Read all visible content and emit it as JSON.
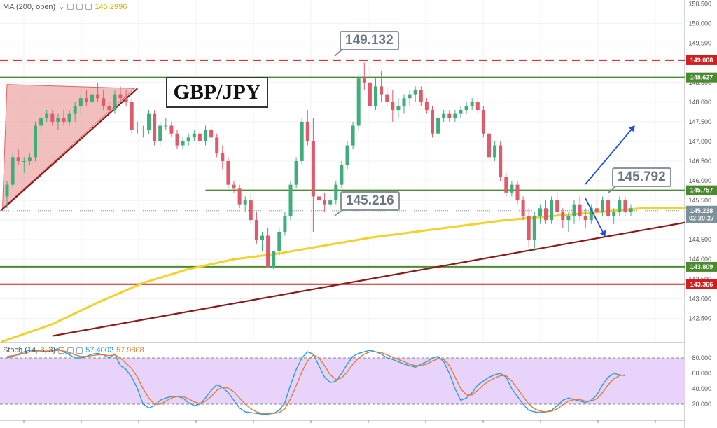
{
  "legend": {
    "ma_label": "MA (200, open)",
    "ma_value": "145.2996",
    "stoch_label": "Stoch (14, 3, 3)",
    "stoch_k": "57.4002",
    "stoch_d": "57.9808"
  },
  "title": "GBP/JPY",
  "callouts": {
    "top": "149.132",
    "mid": "145.216",
    "right": "145.792"
  },
  "colors": {
    "up": "#3fae7a",
    "down": "#e05a6a",
    "ma": "#f2d12a",
    "support": "#4c8a2f",
    "resistance": "#d11f1f",
    "trend": "#8b1a1a",
    "arrow": "#1f4fd1",
    "stoch_k": "#2a9be0",
    "stoch_d": "#e07b39",
    "stoch_bg": "#e6cef9"
  },
  "chart_data": {
    "type": "candlestick",
    "price_axis": {
      "range": [
        141.9,
        150.6
      ],
      "ticks": [
        "150.500",
        "150.000",
        "149.500",
        "149.000",
        "148.500",
        "148.000",
        "147.500",
        "147.000",
        "146.500",
        "146.000",
        "145.500",
        "145.000",
        "144.500",
        "144.000",
        "143.500",
        "143.000",
        "142.500"
      ]
    },
    "price_tags": [
      {
        "value": "149.068",
        "color": "#d11f1f"
      },
      {
        "value": "148.627",
        "color": "#4c8a2f"
      },
      {
        "value": "145.757",
        "color": "#4c8a2f"
      },
      {
        "value": "145.238",
        "color": "#7d8f9a"
      },
      {
        "value": "02:20:27",
        "color": "#7d8f9a",
        "at": 145.05
      },
      {
        "value": "143.809",
        "color": "#4c8a2f"
      },
      {
        "value": "143.366",
        "color": "#d11f1f"
      }
    ],
    "horizontal_levels": [
      {
        "value": 149.068,
        "style": "dashed",
        "color": "#d11f1f"
      },
      {
        "value": 148.627,
        "style": "solid",
        "color": "#4c8a2f"
      },
      {
        "value": 145.757,
        "style": "solid",
        "color": "#4c8a2f",
        "from": 35
      },
      {
        "value": 145.238,
        "style": "dotted",
        "color": "#7d8f9a"
      },
      {
        "value": 143.809,
        "style": "solid",
        "color": "#4c8a2f"
      },
      {
        "value": 143.366,
        "style": "solid",
        "color": "#d11f1f"
      }
    ],
    "trendlines": [
      {
        "from": [
          -1,
          145.25
        ],
        "to": [
          23,
          148.35
        ],
        "color": "#8b1a1a"
      },
      {
        "from": [
          8,
          142.05
        ],
        "to": [
          122,
          145.0
        ],
        "color": "#8b1a1a"
      }
    ],
    "candles": [
      [
        145.6,
        146.0,
        145.3,
        145.9
      ],
      [
        145.9,
        146.7,
        145.8,
        146.6
      ],
      [
        146.6,
        146.8,
        146.4,
        146.5
      ],
      [
        146.5,
        146.6,
        146.2,
        146.5
      ],
      [
        146.5,
        146.7,
        146.4,
        146.6
      ],
      [
        146.6,
        147.5,
        146.5,
        147.4
      ],
      [
        147.4,
        147.7,
        147.2,
        147.6
      ],
      [
        147.6,
        147.8,
        147.5,
        147.7
      ],
      [
        147.7,
        147.8,
        147.4,
        147.5
      ],
      [
        147.5,
        147.7,
        147.3,
        147.6
      ],
      [
        147.6,
        147.8,
        147.4,
        147.5
      ],
      [
        147.5,
        147.8,
        147.4,
        147.7
      ],
      [
        147.7,
        148.0,
        147.5,
        147.9
      ],
      [
        147.9,
        148.2,
        147.7,
        148.1
      ],
      [
        148.1,
        148.3,
        147.9,
        148.0
      ],
      [
        148.0,
        148.3,
        147.8,
        148.2
      ],
      [
        148.2,
        148.5,
        148.0,
        148.1
      ],
      [
        148.1,
        148.3,
        147.8,
        147.9
      ],
      [
        147.9,
        148.0,
        147.7,
        147.8
      ],
      [
        147.8,
        148.3,
        147.7,
        148.2
      ],
      [
        148.2,
        148.4,
        148.0,
        148.1
      ],
      [
        148.1,
        148.3,
        147.9,
        148.0
      ],
      [
        148.0,
        148.1,
        147.2,
        147.3
      ],
      [
        147.3,
        147.5,
        147.2,
        147.3
      ],
      [
        147.3,
        147.4,
        147.1,
        147.3
      ],
      [
        147.3,
        147.8,
        147.2,
        147.7
      ],
      [
        147.7,
        147.8,
        146.9,
        147.0
      ],
      [
        147.0,
        147.5,
        146.9,
        147.4
      ],
      [
        147.4,
        147.6,
        147.3,
        147.4
      ],
      [
        147.4,
        147.5,
        147.1,
        147.2
      ],
      [
        147.2,
        147.3,
        146.8,
        146.9
      ],
      [
        146.9,
        147.1,
        146.8,
        147.0
      ],
      [
        147.0,
        147.2,
        146.9,
        147.1
      ],
      [
        147.1,
        147.3,
        147.0,
        147.2
      ],
      [
        147.2,
        147.3,
        146.9,
        147.0
      ],
      [
        147.0,
        147.4,
        146.9,
        147.3
      ],
      [
        147.3,
        147.4,
        147.0,
        147.1
      ],
      [
        147.1,
        147.2,
        146.6,
        146.7
      ],
      [
        146.7,
        146.9,
        146.3,
        146.5
      ],
      [
        146.5,
        146.6,
        145.8,
        145.9
      ],
      [
        145.9,
        146.0,
        145.7,
        145.8
      ],
      [
        145.8,
        145.9,
        145.3,
        145.4
      ],
      [
        145.4,
        145.6,
        145.2,
        145.5
      ],
      [
        145.5,
        145.7,
        144.9,
        145.0
      ],
      [
        145.0,
        145.2,
        144.4,
        144.5
      ],
      [
        144.5,
        144.7,
        144.2,
        144.6
      ],
      [
        144.6,
        144.8,
        143.8,
        143.8
      ],
      [
        143.8,
        144.2,
        143.75,
        144.2
      ],
      [
        144.2,
        144.8,
        144.1,
        144.7
      ],
      [
        144.7,
        145.2,
        144.6,
        145.1
      ],
      [
        145.1,
        146.0,
        145.0,
        145.9
      ],
      [
        145.9,
        146.6,
        145.8,
        146.5
      ],
      [
        146.5,
        147.6,
        146.4,
        147.5
      ],
      [
        147.5,
        147.8,
        146.9,
        147.0
      ],
      [
        147.0,
        147.6,
        144.7,
        145.6
      ],
      [
        145.6,
        145.8,
        145.4,
        145.5
      ],
      [
        145.5,
        145.7,
        145.2,
        145.4
      ],
      [
        145.4,
        145.6,
        145.3,
        145.5
      ],
      [
        145.5,
        146.0,
        145.4,
        145.9
      ],
      [
        145.9,
        146.5,
        145.8,
        146.4
      ],
      [
        146.4,
        147.0,
        146.3,
        146.9
      ],
      [
        146.9,
        147.5,
        146.8,
        147.4
      ],
      [
        147.4,
        148.7,
        147.3,
        148.6
      ],
      [
        148.6,
        149.0,
        148.3,
        148.5
      ],
      [
        148.5,
        148.9,
        147.7,
        147.9
      ],
      [
        147.9,
        148.6,
        147.8,
        148.4
      ],
      [
        148.4,
        148.8,
        148.0,
        148.2
      ],
      [
        148.2,
        148.4,
        147.9,
        148.0
      ],
      [
        148.0,
        148.3,
        147.5,
        147.8
      ],
      [
        147.8,
        148.1,
        147.6,
        147.9
      ],
      [
        147.9,
        148.2,
        147.7,
        148.1
      ],
      [
        148.1,
        148.3,
        147.9,
        148.2
      ],
      [
        148.2,
        148.4,
        148.0,
        148.3
      ],
      [
        148.3,
        148.4,
        147.9,
        148.0
      ],
      [
        148.0,
        148.1,
        147.7,
        147.8
      ],
      [
        147.8,
        147.9,
        147.1,
        147.2
      ],
      [
        147.2,
        147.7,
        147.1,
        147.6
      ],
      [
        147.6,
        147.8,
        147.5,
        147.7
      ],
      [
        147.7,
        147.8,
        147.5,
        147.6
      ],
      [
        147.6,
        147.8,
        147.5,
        147.7
      ],
      [
        147.7,
        147.9,
        147.6,
        147.8
      ],
      [
        147.8,
        148.0,
        147.7,
        147.9
      ],
      [
        147.9,
        148.1,
        147.8,
        148.0
      ],
      [
        148.0,
        148.1,
        147.7,
        147.8
      ],
      [
        147.8,
        147.9,
        147.1,
        147.2
      ],
      [
        147.2,
        147.3,
        146.5,
        146.6
      ],
      [
        146.6,
        147.0,
        146.5,
        146.9
      ],
      [
        146.9,
        147.0,
        146.0,
        146.1
      ],
      [
        146.1,
        146.2,
        145.6,
        145.7
      ],
      [
        145.7,
        146.0,
        145.6,
        145.9
      ],
      [
        145.9,
        146.0,
        145.4,
        145.5
      ],
      [
        145.5,
        145.6,
        145.0,
        145.1
      ],
      [
        145.1,
        145.3,
        144.3,
        144.5
      ],
      [
        144.5,
        145.2,
        144.2,
        145.1
      ],
      [
        145.1,
        145.4,
        144.9,
        145.3
      ],
      [
        145.3,
        145.5,
        144.9,
        145.0
      ],
      [
        145.0,
        145.6,
        144.9,
        145.5
      ],
      [
        145.5,
        145.7,
        145.1,
        145.2
      ],
      [
        145.2,
        145.3,
        144.8,
        145.0
      ],
      [
        145.0,
        145.2,
        144.7,
        145.1
      ],
      [
        145.1,
        145.5,
        144.9,
        145.4
      ],
      [
        145.4,
        145.6,
        145.0,
        145.1
      ],
      [
        145.1,
        145.3,
        144.8,
        145.0
      ],
      [
        145.0,
        145.4,
        144.9,
        145.3
      ],
      [
        145.3,
        145.7,
        145.1,
        145.2
      ],
      [
        145.2,
        145.6,
        145.1,
        145.5
      ],
      [
        145.5,
        145.8,
        145.0,
        145.1
      ],
      [
        145.1,
        145.3,
        144.9,
        145.2
      ],
      [
        145.2,
        145.6,
        145.1,
        145.5
      ],
      [
        145.5,
        145.6,
        145.1,
        145.2
      ],
      [
        145.2,
        145.4,
        145.1,
        145.3
      ]
    ],
    "moving_average": {
      "name": "MA (200, open)",
      "points": [
        [
          -1,
          141.9
        ],
        [
          8,
          142.35
        ],
        [
          16,
          142.9
        ],
        [
          24,
          143.4
        ],
        [
          32,
          143.75
        ],
        [
          40,
          144.0
        ],
        [
          48,
          144.15
        ],
        [
          56,
          144.35
        ],
        [
          64,
          144.55
        ],
        [
          72,
          144.7
        ],
        [
          80,
          144.85
        ],
        [
          88,
          145.0
        ],
        [
          96,
          145.1
        ],
        [
          104,
          145.2
        ],
        [
          112,
          145.3
        ],
        [
          120,
          145.3
        ]
      ]
    },
    "stochastic": {
      "name": "Stoch (14, 3, 3)",
      "range": [
        0,
        100
      ],
      "ticks": [
        "80.000",
        "60.000",
        "40.000",
        "20.000"
      ],
      "bands": [
        20,
        80
      ],
      "k": [
        80,
        82,
        85,
        88,
        90,
        90,
        89,
        88,
        90,
        92,
        88,
        84,
        80,
        80,
        82,
        85,
        86,
        84,
        80,
        85,
        70,
        65,
        55,
        40,
        20,
        15,
        18,
        25,
        28,
        30,
        30,
        28,
        22,
        18,
        20,
        28,
        38,
        45,
        42,
        35,
        25,
        15,
        10,
        9,
        8,
        7,
        7,
        8,
        12,
        22,
        45,
        65,
        80,
        88,
        85,
        70,
        55,
        48,
        50,
        60,
        72,
        82,
        86,
        88,
        90,
        88,
        85,
        80,
        78,
        75,
        72,
        70,
        68,
        72,
        75,
        80,
        82,
        75,
        60,
        40,
        25,
        28,
        35,
        45,
        50,
        55,
        58,
        60,
        55,
        40,
        30,
        20,
        12,
        10,
        9,
        10,
        12,
        18,
        25,
        28,
        26,
        24,
        22,
        25,
        32,
        45,
        55,
        60,
        58,
        57
      ],
      "d": [
        82,
        83,
        84,
        86,
        88,
        89,
        89,
        89,
        89,
        90,
        89,
        87,
        84,
        82,
        82,
        83,
        84,
        84,
        83,
        84,
        80,
        73,
        66,
        55,
        40,
        28,
        20,
        20,
        24,
        28,
        30,
        30,
        27,
        23,
        21,
        24,
        30,
        38,
        42,
        41,
        36,
        28,
        20,
        14,
        10,
        8,
        8,
        8,
        9,
        14,
        27,
        44,
        62,
        76,
        84,
        80,
        70,
        58,
        52,
        54,
        62,
        72,
        80,
        85,
        88,
        88,
        87,
        84,
        81,
        78,
        75,
        72,
        70,
        70,
        72,
        76,
        79,
        78,
        70,
        55,
        40,
        32,
        32,
        38,
        45,
        50,
        54,
        57,
        57,
        50,
        40,
        30,
        20,
        14,
        11,
        10,
        11,
        14,
        19,
        24,
        26,
        26,
        24,
        24,
        27,
        35,
        45,
        53,
        57,
        58
      ]
    }
  }
}
